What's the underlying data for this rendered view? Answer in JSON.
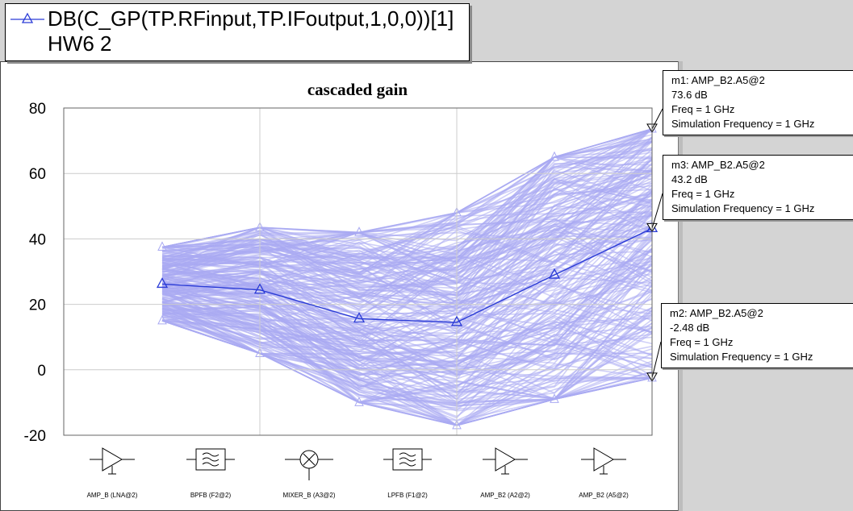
{
  "legend": {
    "line1": "DB(C_GP(TP.RFinput,TP.IFoutput,1,0,0))[1]",
    "line2": "HW6 2"
  },
  "colors": {
    "nominal": "#2a3bd6",
    "monte_carlo": "#a9aaf2",
    "grid": "#cccccc",
    "axis": "#000000"
  },
  "chart_data": {
    "type": "line",
    "title": "cascaded gain",
    "xlabel": "",
    "ylabel": "",
    "ylim": [
      -20,
      80
    ],
    "yticks": [
      -20,
      0,
      20,
      40,
      60,
      80
    ],
    "grid": true,
    "categories": [
      "AMP_B (LNA@2)",
      "BPFB (F2@2)",
      "MIXER_B (A3@2)",
      "LPFB (F1@2)",
      "AMP_B2 (A2@2)",
      "AMP_B2 (A5@2)"
    ],
    "category_labels": [
      "AMP_B (LNA@2)",
      "BPFB (F2@2)",
      "MIXER_B (A3@2)",
      "LPFB (F1@2)",
      "AMP_B2 (A2@2)",
      "AMP_B2 (A5@2)"
    ],
    "category_icons": [
      "amplifier-icon",
      "bandpass-filter-icon",
      "mixer-icon",
      "lowpass-filter-icon",
      "amplifier-icon",
      "amplifier-icon"
    ],
    "series": [
      {
        "name": "DB(C_GP(TP.RFinput,TP.IFoutput,1,0,0))[1]",
        "values": [
          26.2,
          24.4,
          15.6,
          14.5,
          29.0,
          43.2
        ]
      }
    ],
    "monte_carlo_envelope": {
      "upper": [
        37.5,
        43.5,
        42.0,
        48.0,
        65.0,
        73.6
      ],
      "lower": [
        15.0,
        5.0,
        -10.0,
        -17.0,
        -9.0,
        -2.48
      ]
    },
    "markers": [
      {
        "id": "m1",
        "label": "m1: AMP_B2.A5@2",
        "value_text": "73.6 dB",
        "freq": "Freq = 1 GHz",
        "sim": "Simulation Frequency = 1 GHz",
        "x_index": 5,
        "y": 73.6
      },
      {
        "id": "m3",
        "label": "m3: AMP_B2.A5@2",
        "value_text": "43.2 dB",
        "freq": "Freq = 1 GHz",
        "sim": "Simulation Frequency = 1 GHz",
        "x_index": 5,
        "y": 43.2
      },
      {
        "id": "m2",
        "label": "m2: AMP_B2.A5@2",
        "value_text": "-2.48 dB",
        "freq": "Freq = 1 GHz",
        "sim": "Simulation Frequency = 1 GHz",
        "x_index": 5,
        "y": -2.48
      }
    ]
  }
}
